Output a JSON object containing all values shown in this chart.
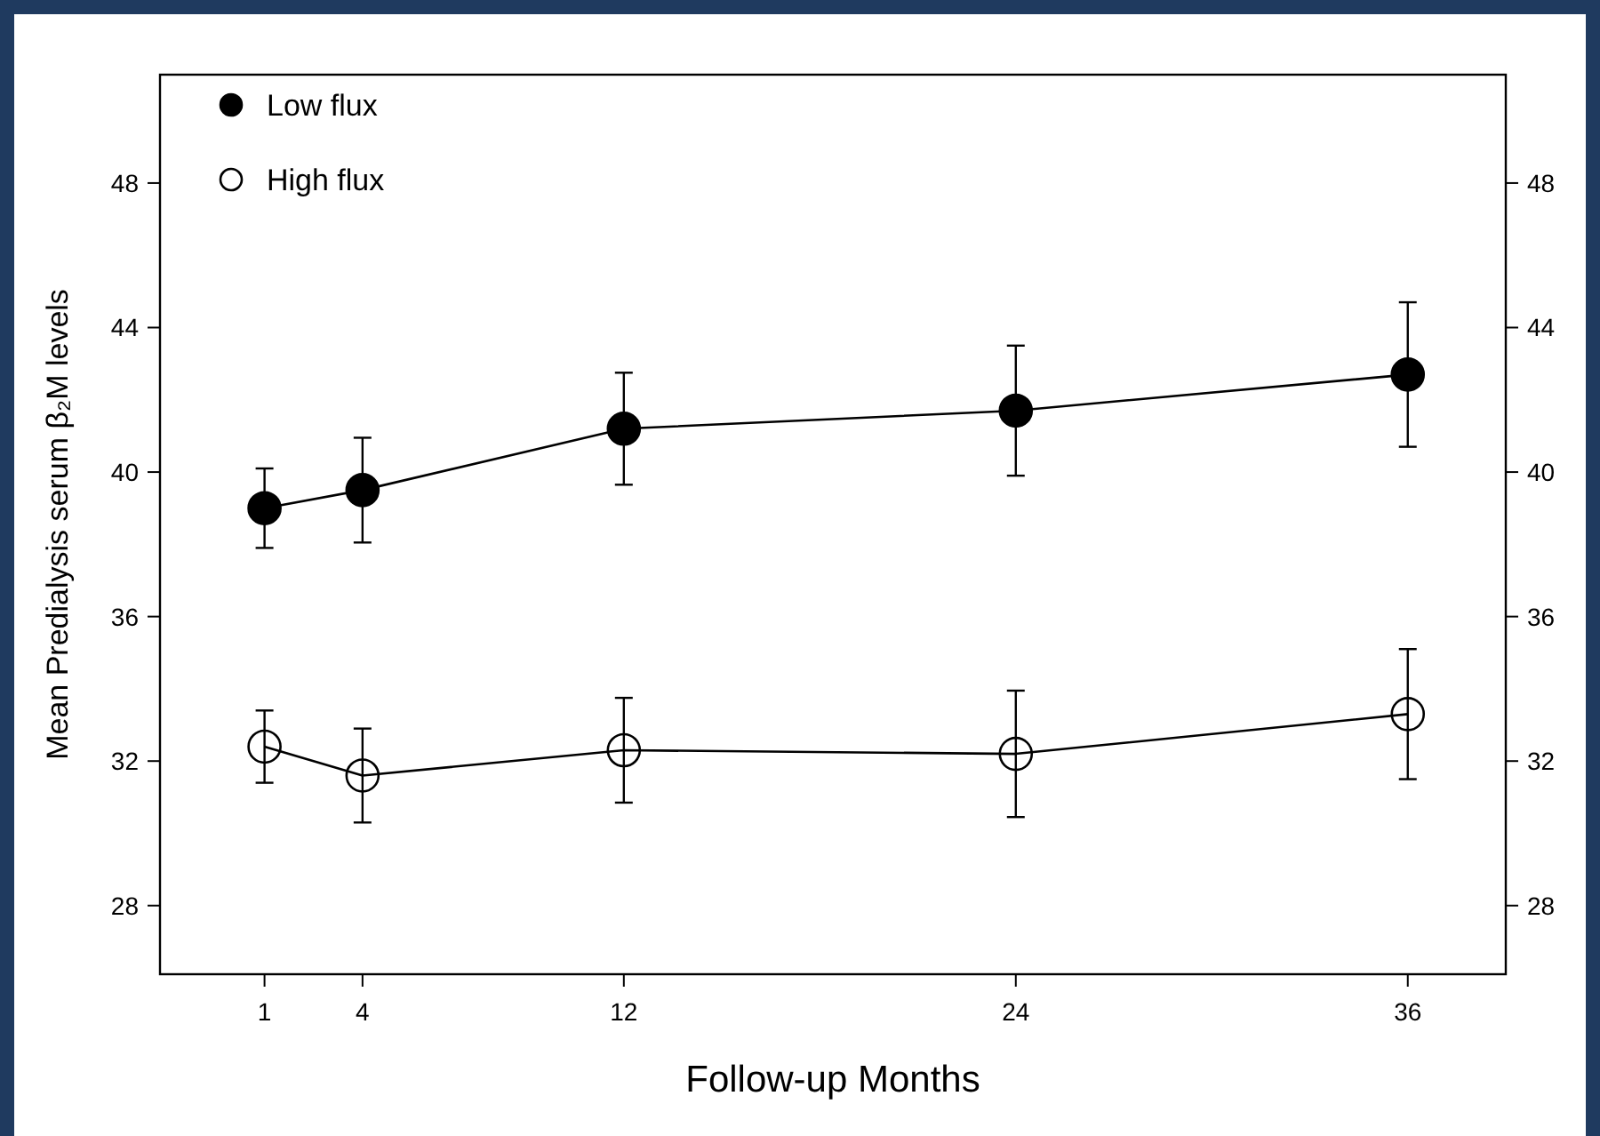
{
  "chart_data": {
    "type": "line",
    "xlabel": "Follow-up Months",
    "ylabel": "Mean Predialysis serum β₂M levels",
    "x": [
      1,
      4,
      12,
      24,
      36
    ],
    "series": [
      {
        "name": "Low flux",
        "color": "#000000",
        "values": [
          39.0,
          39.5,
          41.2,
          41.7,
          42.7
        ],
        "errors": [
          1.1,
          1.45,
          1.55,
          1.8,
          2.0
        ]
      },
      {
        "name": "High flux",
        "color": "#000000",
        "values": [
          32.4,
          31.6,
          32.3,
          32.2,
          33.3
        ],
        "errors": [
          1.0,
          1.3,
          1.45,
          1.75,
          1.8
        ]
      }
    ],
    "xlim": [
      -2.2,
      39
    ],
    "xticks": [
      1,
      4,
      12,
      24,
      36
    ],
    "ylim": [
      26.1,
      51
    ],
    "yticks": [
      28,
      32,
      36,
      40,
      44,
      48
    ],
    "y2lim": [
      26.1,
      51
    ],
    "y2ticks": [
      28,
      32,
      36,
      40,
      44,
      48
    ],
    "grid": false,
    "legend": "top left",
    "marker": "circle",
    "line_style": "solid"
  }
}
